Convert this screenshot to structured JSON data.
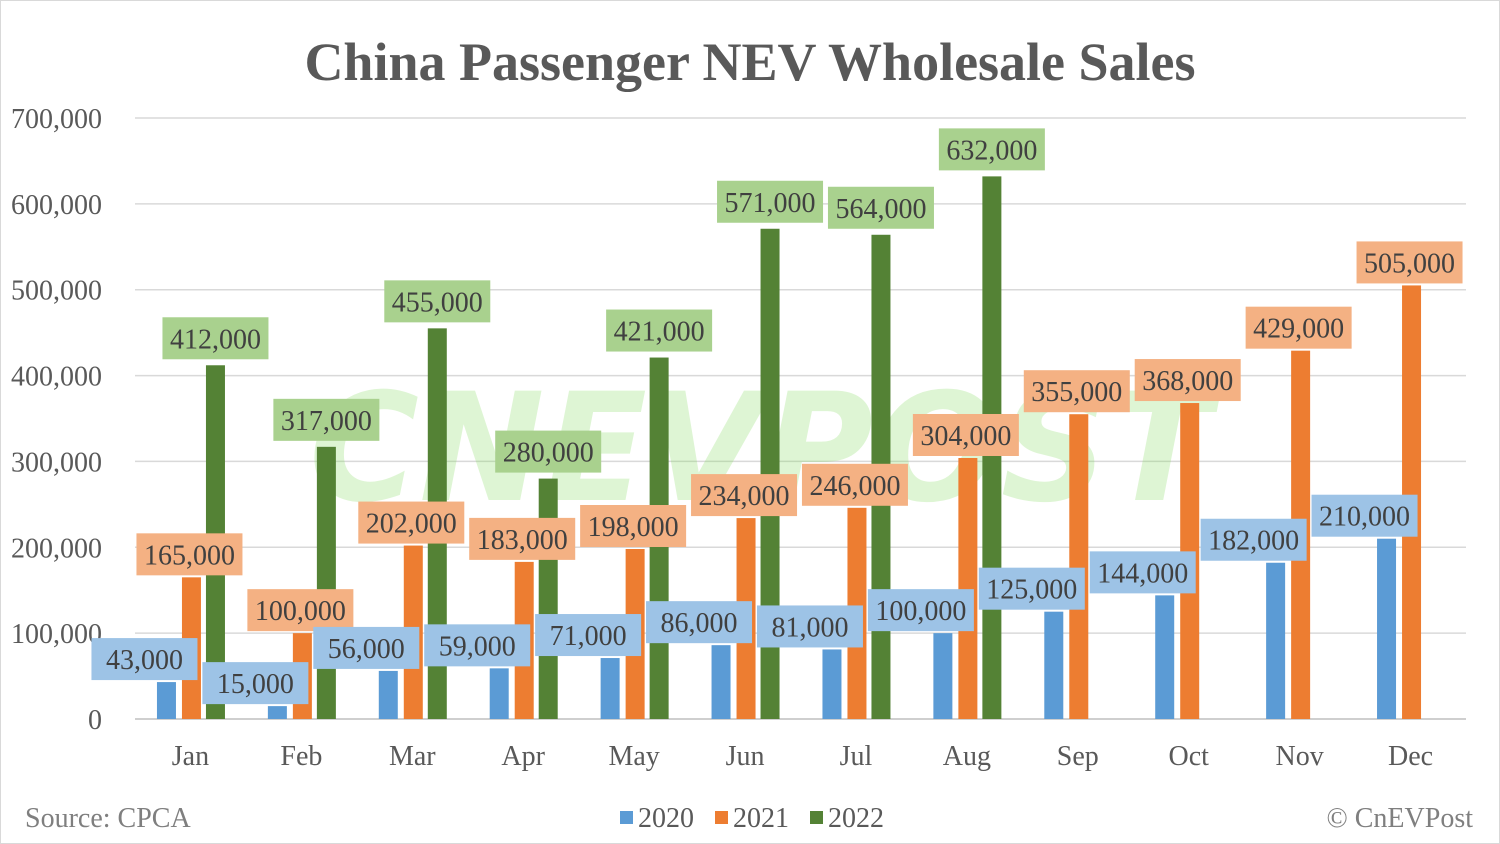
{
  "chart_data": {
    "type": "bar",
    "title": "China Passenger NEV Wholesale Sales",
    "xlabel": "",
    "ylabel": "",
    "ylim": [
      0,
      700000
    ],
    "yticks": [
      "0",
      "100,000",
      "200,000",
      "300,000",
      "400,000",
      "500,000",
      "600,000",
      "700,000"
    ],
    "ytick_values": [
      0,
      100000,
      200000,
      300000,
      400000,
      500000,
      600000,
      700000
    ],
    "grid": true,
    "legend": "bottom",
    "categories": [
      "Jan",
      "Feb",
      "Mar",
      "Apr",
      "May",
      "Jun",
      "Jul",
      "Aug",
      "Sep",
      "Oct",
      "Nov",
      "Dec"
    ],
    "series": [
      {
        "name": "2020",
        "color": "#5b9bd5",
        "label_bg": "#9dc3e6",
        "values": [
          43000,
          15000,
          56000,
          59000,
          71000,
          86000,
          81000,
          100000,
          125000,
          144000,
          182000,
          210000
        ],
        "labels": [
          "43,000",
          "15,000",
          "56,000",
          "59,000",
          "71,000",
          "86,000",
          "81,000",
          "100,000",
          "125,000",
          "144,000",
          "182,000",
          "210,000"
        ]
      },
      {
        "name": "2021",
        "color": "#ed7d31",
        "label_bg": "#f4b183",
        "values": [
          165000,
          100000,
          202000,
          183000,
          198000,
          234000,
          246000,
          304000,
          355000,
          368000,
          429000,
          505000
        ],
        "labels": [
          "165,000",
          "100,000",
          "202,000",
          "183,000",
          "198,000",
          "234,000",
          "246,000",
          "304,000",
          "355,000",
          "368,000",
          "429,000",
          "505,000"
        ]
      },
      {
        "name": "2022",
        "color": "#548235",
        "label_bg": "#a9d18e",
        "values": [
          412000,
          317000,
          455000,
          280000,
          421000,
          571000,
          564000,
          632000,
          null,
          null,
          null,
          null
        ],
        "labels": [
          "412,000",
          "317,000",
          "455,000",
          "280,000",
          "421,000",
          "571,000",
          "564,000",
          "632,000",
          null,
          null,
          null,
          null
        ]
      }
    ]
  },
  "source": "Source: CPCA",
  "copyright": "© CnEVPost",
  "watermark": "CNEVPOST"
}
